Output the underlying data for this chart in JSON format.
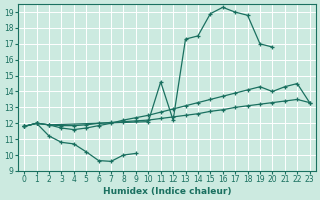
{
  "bg_color": "#cceae0",
  "line_color": "#1a7060",
  "xlabel": "Humidex (Indice chaleur)",
  "xlim": [
    -0.5,
    23.5
  ],
  "ylim": [
    9,
    19.5
  ],
  "xticks": [
    0,
    1,
    2,
    3,
    4,
    5,
    6,
    7,
    8,
    9,
    10,
    11,
    12,
    13,
    14,
    15,
    16,
    17,
    18,
    19,
    20,
    21,
    22,
    23
  ],
  "yticks": [
    9,
    10,
    11,
    12,
    13,
    14,
    15,
    16,
    17,
    18,
    19
  ],
  "series": [
    {
      "x": [
        0,
        1,
        2,
        3,
        4,
        5,
        6,
        7,
        8,
        9,
        10,
        11,
        12,
        13,
        14,
        15,
        16,
        17,
        18,
        19,
        20,
        21,
        22,
        23
      ],
      "y": [
        11.8,
        12.0,
        11.9,
        11.85,
        11.85,
        11.9,
        12.0,
        12.05,
        12.1,
        12.15,
        12.2,
        12.3,
        12.4,
        12.5,
        12.6,
        12.75,
        12.85,
        13.0,
        13.1,
        13.2,
        13.3,
        13.4,
        13.5,
        13.3
      ]
    },
    {
      "x": [
        0,
        1,
        2,
        3,
        4,
        5,
        6,
        7,
        8,
        9,
        10,
        11,
        12,
        13,
        14,
        15,
        16,
        17,
        18,
        19,
        20,
        21,
        22,
        23
      ],
      "y": [
        11.8,
        12.0,
        11.9,
        11.7,
        11.6,
        11.7,
        11.85,
        12.0,
        12.2,
        12.35,
        12.5,
        12.7,
        12.9,
        13.1,
        13.3,
        13.5,
        13.7,
        13.9,
        14.1,
        14.3,
        14.0,
        14.3,
        14.5,
        13.3
      ]
    },
    {
      "x": [
        0,
        1,
        2,
        10,
        11,
        12,
        13,
        14,
        15,
        16,
        17,
        18,
        19,
        20
      ],
      "y": [
        11.8,
        12.0,
        11.9,
        12.1,
        14.6,
        12.2,
        17.3,
        17.5,
        18.9,
        19.3,
        19.0,
        18.8,
        17.0,
        16.8
      ]
    },
    {
      "x": [
        0,
        1,
        2,
        3,
        4,
        5,
        6,
        7,
        8,
        9
      ],
      "y": [
        11.8,
        12.0,
        11.2,
        10.8,
        10.7,
        10.2,
        9.65,
        9.6,
        10.0,
        10.1
      ]
    }
  ]
}
